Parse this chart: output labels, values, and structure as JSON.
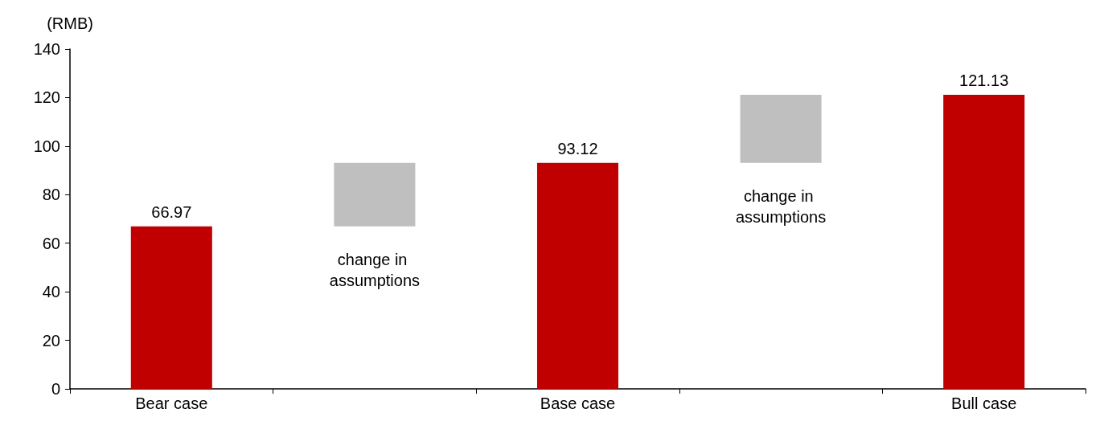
{
  "chart_data": {
    "type": "bar",
    "ylabel": "(RMB)",
    "categories": [
      "Bear case",
      null,
      "Base case",
      null,
      "Bull case"
    ],
    "values": [
      66.97,
      26.15,
      93.12,
      28.01,
      121.13
    ],
    "base": [
      0,
      66.97,
      0,
      93.12,
      0
    ],
    "colors": [
      "#c00000",
      "#bfbfbf",
      "#c00000",
      "#bfbfbf",
      "#c00000"
    ],
    "value_labels": [
      "66.97",
      null,
      "93.12",
      null,
      "121.13"
    ],
    "annotations": [
      "change in assumptions",
      "change in assumptions"
    ],
    "ylim": [
      0,
      140
    ],
    "yticks": [
      0,
      20,
      40,
      60,
      80,
      100,
      120,
      140
    ],
    "grid": false
  }
}
